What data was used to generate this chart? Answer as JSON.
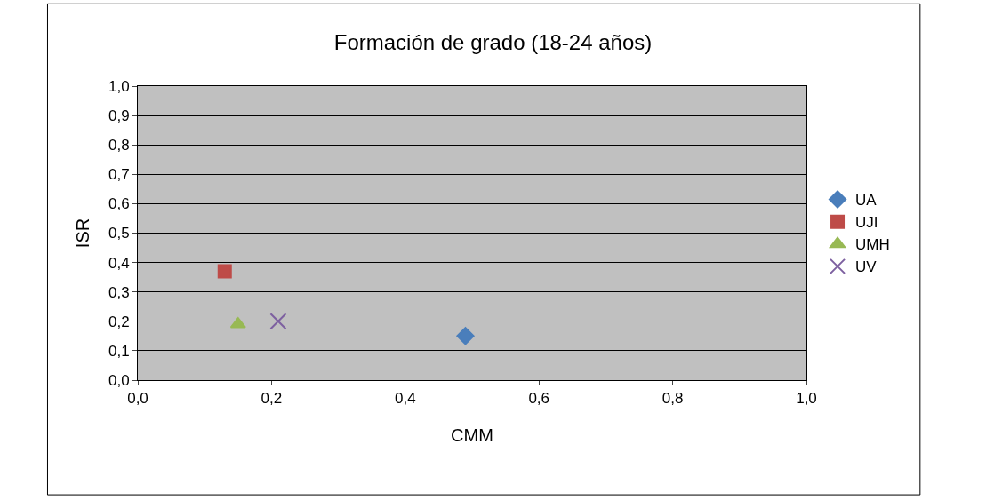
{
  "chart_data": {
    "type": "scatter",
    "title": "Formación de grado (18-24 años)",
    "xlabel": "CMM",
    "ylabel": "ISR",
    "series": [
      {
        "name": "UA",
        "color": "#4a7ebb",
        "marker": "diamond",
        "x": [
          0.49
        ],
        "values": [
          0.15
        ]
      },
      {
        "name": "UJI",
        "color": "#be4b48",
        "marker": "square",
        "x": [
          0.13
        ],
        "values": [
          0.37
        ]
      },
      {
        "name": "UMH",
        "color": "#98b954",
        "marker": "triangle",
        "x": [
          0.15
        ],
        "values": [
          0.19
        ]
      },
      {
        "name": "UV",
        "color": "#7d60a0",
        "marker": "cross",
        "x": [
          0.21
        ],
        "values": [
          0.2
        ]
      }
    ],
    "xlim": [
      0,
      1
    ],
    "xticks": [
      {
        "value": 0,
        "label": "0,0"
      },
      {
        "value": 0.2,
        "label": "0,2"
      },
      {
        "value": 0.4,
        "label": "0,4"
      },
      {
        "value": 0.6,
        "label": "0,6"
      },
      {
        "value": 0.8,
        "label": "0,8"
      },
      {
        "value": 1,
        "label": "1,0"
      }
    ],
    "ylim": [
      0,
      1
    ],
    "yticks": [
      {
        "value": 0,
        "label": "0,0"
      },
      {
        "value": 0.1,
        "label": "0,1"
      },
      {
        "value": 0.2,
        "label": "0,2"
      },
      {
        "value": 0.3,
        "label": "0,3"
      },
      {
        "value": 0.4,
        "label": "0,4"
      },
      {
        "value": 0.5,
        "label": "0,5"
      },
      {
        "value": 0.6,
        "label": "0,6"
      },
      {
        "value": 0.7,
        "label": "0,7"
      },
      {
        "value": 0.8,
        "label": "0,8"
      },
      {
        "value": 0.9,
        "label": "0,9"
      },
      {
        "value": 1,
        "label": "1,0"
      }
    ],
    "grid": "y",
    "legend": "right"
  }
}
